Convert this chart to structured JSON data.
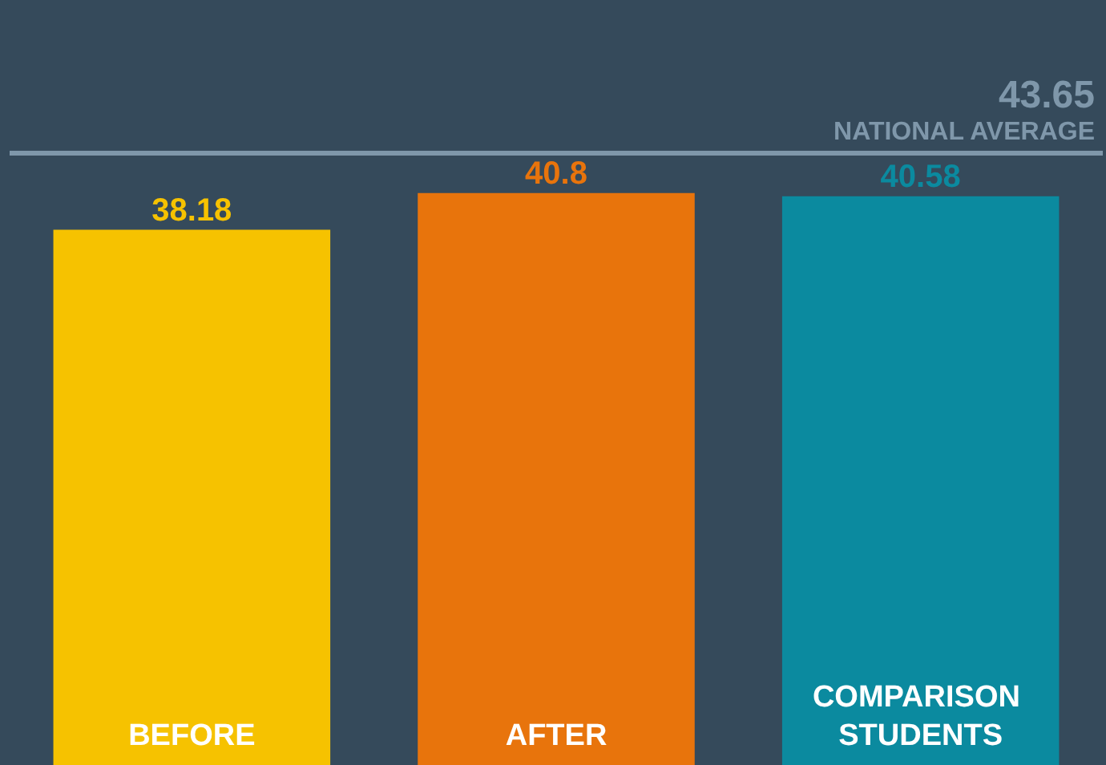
{
  "chart_data": {
    "type": "bar",
    "categories": [
      "BEFORE",
      "AFTER",
      "COMPARISON STUDENTS"
    ],
    "values": [
      38.18,
      40.8,
      40.58
    ],
    "colors": [
      "#f6c200",
      "#e8740c",
      "#0b8a9f"
    ],
    "data_labels": true,
    "ref_lines": [
      {
        "axis": "y",
        "value": 43.65,
        "label": "NATIONAL AVERAGE",
        "color": "#7f97aa"
      }
    ],
    "annotations": [
      {
        "text": "43.65",
        "y": 43.65
      }
    ]
  }
}
